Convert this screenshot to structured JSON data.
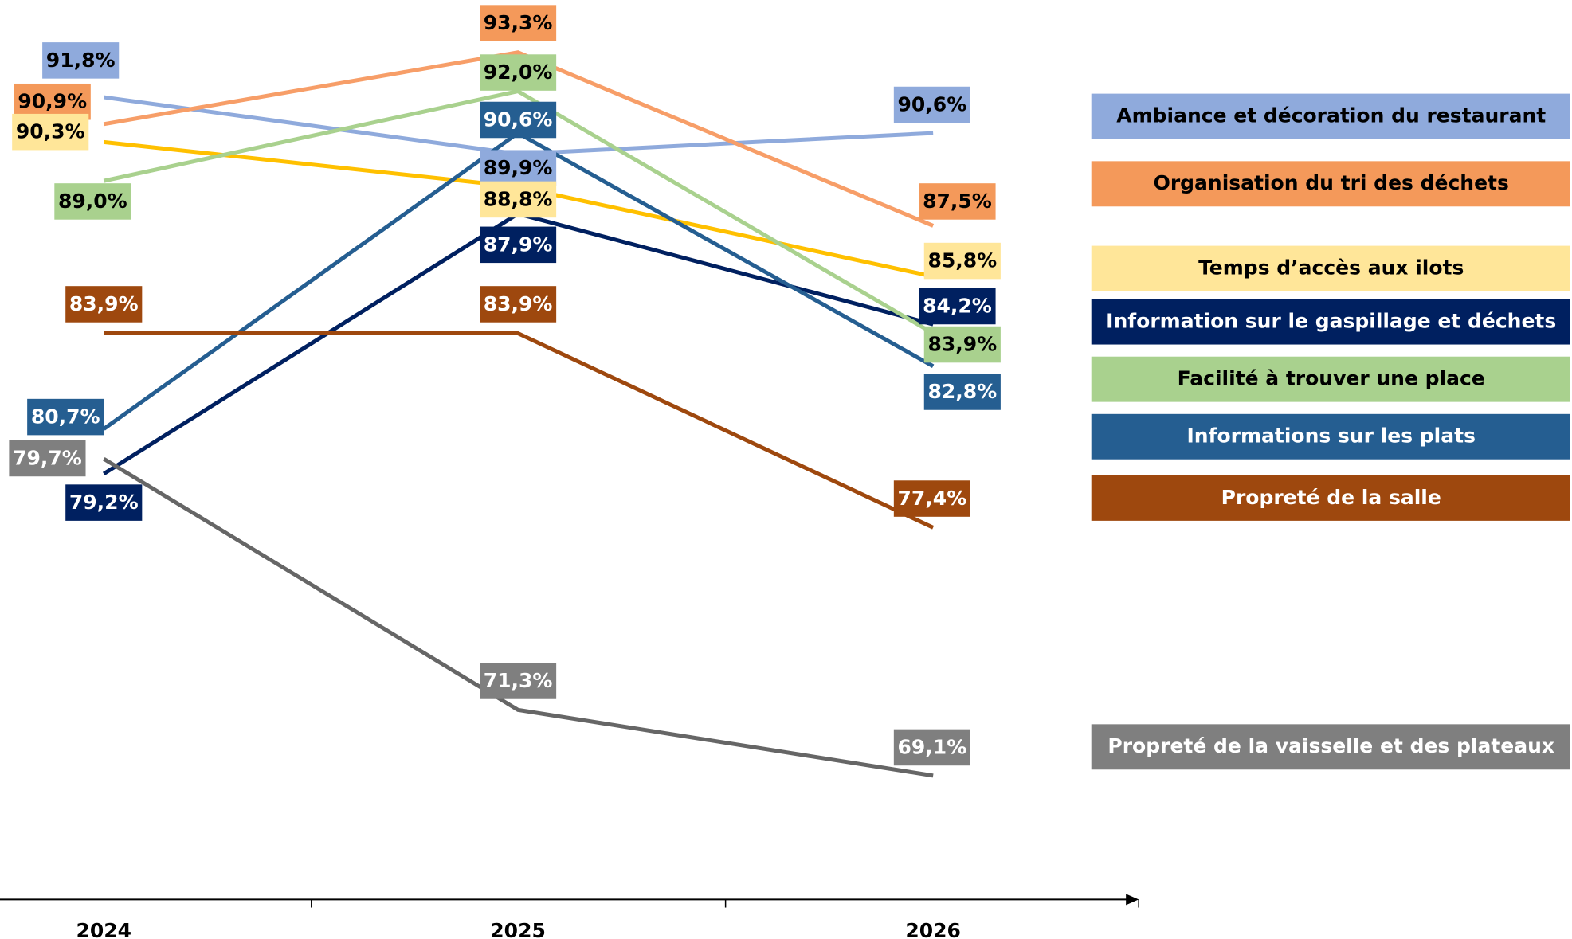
{
  "chart_data": {
    "type": "line",
    "categories": [
      "2024",
      "2025",
      "2026"
    ],
    "series": [
      {
        "name": "Ambiance et décoration du restaurant",
        "color": "#8faadc",
        "line_color": "#8faadc",
        "text_color": "#000000",
        "values": [
          91.8,
          89.9,
          90.6
        ],
        "value_labels": [
          "91,8%",
          "89,9%",
          "90,6%"
        ]
      },
      {
        "name": "Organisation du tri des déchets",
        "color": "#f4995a",
        "line_color": "#f79e68",
        "text_color": "#000000",
        "values": [
          90.9,
          93.3,
          87.5
        ],
        "value_labels": [
          "90,9%",
          "93,3%",
          "87,5%"
        ]
      },
      {
        "name": "Temps d’accès aux ilots",
        "color": "#ffe699",
        "line_color": "#ffc000",
        "text_color": "#000000",
        "values": [
          90.3,
          88.8,
          85.8
        ],
        "value_labels": [
          "90,3%",
          "88,8%",
          "85,8%"
        ]
      },
      {
        "name": "Information sur le gaspillage et déchets",
        "color": "#002060",
        "line_color": "#002060",
        "text_color": "#ffffff",
        "values": [
          79.2,
          87.9,
          84.2
        ],
        "value_labels": [
          "79,2%",
          "87,9%",
          "84,2%"
        ]
      },
      {
        "name": "Facilité à trouver une place",
        "color": "#a9d18e",
        "line_color": "#a9d18e",
        "text_color": "#000000",
        "values": [
          89.0,
          92.0,
          83.9
        ],
        "value_labels": [
          "89,0%",
          "92,0%",
          "83,9%"
        ]
      },
      {
        "name": "Informations sur les plats",
        "color": "#255e91",
        "line_color": "#255e91",
        "text_color": "#ffffff",
        "values": [
          80.7,
          90.6,
          82.8
        ],
        "value_labels": [
          "80,7%",
          "90,6%",
          "82,8%"
        ]
      },
      {
        "name": "Propreté de la salle",
        "color": "#9e480e",
        "line_color": "#9e480e",
        "text_color": "#ffffff",
        "values": [
          83.9,
          83.9,
          77.4
        ],
        "value_labels": [
          "83,9%",
          "83,9%",
          "77,4%"
        ]
      },
      {
        "name": "Propreté de la vaisselle et des plateaux",
        "color": "#7f7f7f",
        "line_color": "#666666",
        "text_color": "#ffffff",
        "values": [
          79.7,
          71.3,
          69.1
        ],
        "value_labels": [
          "79,7%",
          "71,3%",
          "69,1%"
        ]
      }
    ]
  }
}
